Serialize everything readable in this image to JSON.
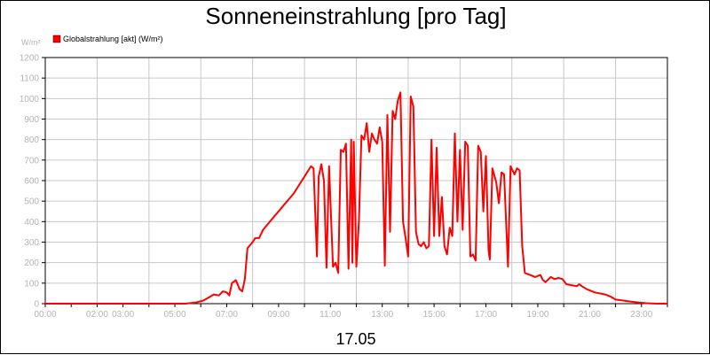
{
  "chart_data": {
    "type": "line",
    "title": "Sonneneinstrahlung [pro Tag]",
    "ylabel": "W/m²",
    "xlabel": "17.05",
    "ylim": [
      0,
      1200
    ],
    "xlim": [
      0,
      24
    ],
    "grid": true,
    "legend_position": "top-left",
    "y_ticks": [
      0,
      100,
      200,
      300,
      400,
      500,
      600,
      700,
      800,
      900,
      1000,
      1100,
      1200
    ],
    "x_tick_labels": [
      {
        "hour": 0,
        "label": "00:00"
      },
      {
        "hour": 2,
        "label": "02:00"
      },
      {
        "hour": 3,
        "label": "03:00"
      },
      {
        "hour": 5,
        "label": "05:00"
      },
      {
        "hour": 7,
        "label": "07:00"
      },
      {
        "hour": 9,
        "label": "09:00"
      },
      {
        "hour": 11,
        "label": "11:00"
      },
      {
        "hour": 13,
        "label": "13:00"
      },
      {
        "hour": 15,
        "label": "15:00"
      },
      {
        "hour": 17,
        "label": "17:00"
      },
      {
        "hour": 19,
        "label": "19:00"
      },
      {
        "hour": 21,
        "label": "21:00"
      },
      {
        "hour": 23,
        "label": "23:00"
      }
    ],
    "colors": {
      "series": "#ff0000",
      "grid": "#c8c8c8",
      "axis": "#000000",
      "tick_text": "#b4b4b4"
    },
    "series": [
      {
        "name": "Globalstrahlung [akt] (W/m²)",
        "points": [
          [
            0.0,
            0
          ],
          [
            5.4,
            0
          ],
          [
            5.8,
            5
          ],
          [
            6.1,
            15
          ],
          [
            6.3,
            30
          ],
          [
            6.5,
            45
          ],
          [
            6.7,
            40
          ],
          [
            6.85,
            60
          ],
          [
            7.0,
            55
          ],
          [
            7.1,
            40
          ],
          [
            7.2,
            100
          ],
          [
            7.35,
            115
          ],
          [
            7.5,
            70
          ],
          [
            7.6,
            60
          ],
          [
            7.7,
            120
          ],
          [
            7.8,
            270
          ],
          [
            8.0,
            300
          ],
          [
            8.1,
            320
          ],
          [
            8.25,
            320
          ],
          [
            8.4,
            360
          ],
          [
            8.6,
            390
          ],
          [
            8.8,
            420
          ],
          [
            9.0,
            450
          ],
          [
            9.2,
            480
          ],
          [
            9.4,
            510
          ],
          [
            9.6,
            540
          ],
          [
            9.8,
            580
          ],
          [
            10.0,
            620
          ],
          [
            10.15,
            650
          ],
          [
            10.25,
            670
          ],
          [
            10.35,
            660
          ],
          [
            10.48,
            230
          ],
          [
            10.55,
            620
          ],
          [
            10.65,
            680
          ],
          [
            10.75,
            600
          ],
          [
            10.85,
            175
          ],
          [
            10.95,
            670
          ],
          [
            11.1,
            180
          ],
          [
            11.2,
            200
          ],
          [
            11.3,
            150
          ],
          [
            11.4,
            750
          ],
          [
            11.5,
            740
          ],
          [
            11.6,
            780
          ],
          [
            11.7,
            170
          ],
          [
            11.8,
            800
          ],
          [
            11.85,
            200
          ],
          [
            11.9,
            790
          ],
          [
            12.0,
            180
          ],
          [
            12.1,
            400
          ],
          [
            12.2,
            820
          ],
          [
            12.3,
            800
          ],
          [
            12.4,
            880
          ],
          [
            12.5,
            740
          ],
          [
            12.6,
            830
          ],
          [
            12.7,
            800
          ],
          [
            12.8,
            780
          ],
          [
            12.9,
            860
          ],
          [
            13.0,
            790
          ],
          [
            13.1,
            185
          ],
          [
            13.2,
            920
          ],
          [
            13.3,
            350
          ],
          [
            13.4,
            940
          ],
          [
            13.5,
            900
          ],
          [
            13.6,
            990
          ],
          [
            13.7,
            1030
          ],
          [
            13.8,
            400
          ],
          [
            13.9,
            320
          ],
          [
            14.0,
            230
          ],
          [
            14.1,
            1010
          ],
          [
            14.2,
            960
          ],
          [
            14.3,
            350
          ],
          [
            14.4,
            290
          ],
          [
            14.5,
            280
          ],
          [
            14.6,
            300
          ],
          [
            14.7,
            270
          ],
          [
            14.8,
            280
          ],
          [
            14.9,
            800
          ],
          [
            15.0,
            330
          ],
          [
            15.1,
            760
          ],
          [
            15.2,
            330
          ],
          [
            15.3,
            520
          ],
          [
            15.4,
            280
          ],
          [
            15.5,
            240
          ],
          [
            15.6,
            370
          ],
          [
            15.7,
            330
          ],
          [
            15.8,
            830
          ],
          [
            15.9,
            400
          ],
          [
            16.0,
            750
          ],
          [
            16.1,
            360
          ],
          [
            16.2,
            790
          ],
          [
            16.3,
            770
          ],
          [
            16.4,
            230
          ],
          [
            16.5,
            240
          ],
          [
            16.6,
            210
          ],
          [
            16.7,
            770
          ],
          [
            16.8,
            740
          ],
          [
            16.9,
            450
          ],
          [
            17.0,
            720
          ],
          [
            17.1,
            260
          ],
          [
            17.15,
            215
          ],
          [
            17.25,
            660
          ],
          [
            17.4,
            590
          ],
          [
            17.5,
            490
          ],
          [
            17.6,
            640
          ],
          [
            17.7,
            630
          ],
          [
            17.85,
            180
          ],
          [
            17.95,
            670
          ],
          [
            18.1,
            630
          ],
          [
            18.2,
            660
          ],
          [
            18.3,
            650
          ],
          [
            18.4,
            280
          ],
          [
            18.5,
            150
          ],
          [
            18.7,
            140
          ],
          [
            18.9,
            130
          ],
          [
            19.1,
            140
          ],
          [
            19.2,
            115
          ],
          [
            19.3,
            105
          ],
          [
            19.5,
            130
          ],
          [
            19.65,
            120
          ],
          [
            19.8,
            125
          ],
          [
            19.95,
            120
          ],
          [
            20.1,
            95
          ],
          [
            20.3,
            90
          ],
          [
            20.5,
            85
          ],
          [
            20.6,
            95
          ],
          [
            20.7,
            85
          ],
          [
            20.9,
            70
          ],
          [
            21.2,
            55
          ],
          [
            21.6,
            45
          ],
          [
            21.8,
            35
          ],
          [
            22.0,
            20
          ],
          [
            22.3,
            15
          ],
          [
            22.6,
            10
          ],
          [
            22.9,
            5
          ],
          [
            23.2,
            2
          ],
          [
            23.6,
            0
          ],
          [
            24.0,
            0
          ]
        ]
      }
    ]
  }
}
